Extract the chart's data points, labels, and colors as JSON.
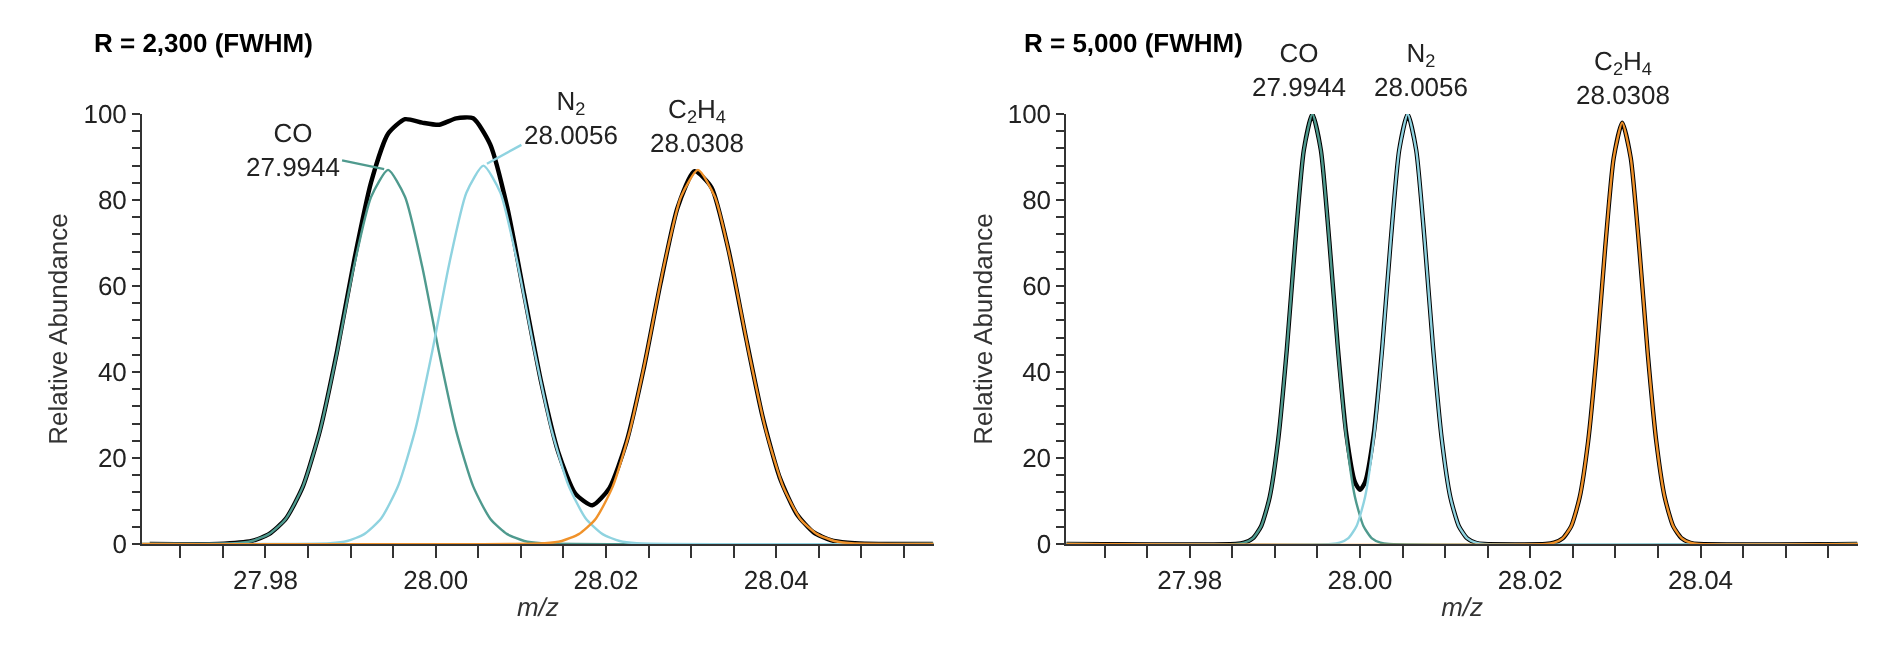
{
  "chart_data": [
    {
      "type": "line",
      "title": "R = 2,300 (FWHM)",
      "xlabel": "m/z",
      "ylabel": "Relative Abundance",
      "xlim": [
        27.9655,
        28.0585
      ],
      "ylim": [
        0,
        100
      ],
      "xticks": [
        {
          "value": 27.97,
          "label": null
        },
        {
          "value": 27.975,
          "label": null
        },
        {
          "value": 27.98,
          "label": "27.98"
        },
        {
          "value": 27.985,
          "label": null
        },
        {
          "value": 27.99,
          "label": null
        },
        {
          "value": 27.995,
          "label": null
        },
        {
          "value": 28.0,
          "label": "28.00"
        },
        {
          "value": 28.005,
          "label": null
        },
        {
          "value": 28.01,
          "label": null
        },
        {
          "value": 28.015,
          "label": null
        },
        {
          "value": 28.02,
          "label": "28.02"
        },
        {
          "value": 28.025,
          "label": null
        },
        {
          "value": 28.03,
          "label": null
        },
        {
          "value": 28.035,
          "label": null
        },
        {
          "value": 28.04,
          "label": "28.04"
        },
        {
          "value": 28.045,
          "label": null
        },
        {
          "value": 28.05,
          "label": null
        },
        {
          "value": 28.055,
          "label": null
        }
      ],
      "yticks": [
        0,
        {
          "value": 4,
          "label": null
        },
        {
          "value": 8,
          "label": null
        },
        {
          "value": 12,
          "label": null
        },
        {
          "value": 16,
          "label": null
        },
        20,
        {
          "value": 24,
          "label": null
        },
        {
          "value": 28,
          "label": null
        },
        {
          "value": 32,
          "label": null
        },
        {
          "value": 36,
          "label": null
        },
        40,
        {
          "value": 44,
          "label": null
        },
        {
          "value": 48,
          "label": null
        },
        {
          "value": 52,
          "label": null
        },
        {
          "value": 56,
          "label": null
        },
        60,
        {
          "value": 64,
          "label": null
        },
        {
          "value": 68,
          "label": null
        },
        {
          "value": 72,
          "label": null
        },
        {
          "value": 76,
          "label": null
        },
        80,
        {
          "value": 84,
          "label": null
        },
        {
          "value": 88,
          "label": null
        },
        {
          "value": 92,
          "label": null
        },
        {
          "value": 96,
          "label": null
        },
        100
      ],
      "series": [
        {
          "color": "#000000",
          "x": [
            27.9664,
            27.9744,
            27.9784,
            27.9804,
            27.9824,
            27.9844,
            27.9864,
            27.9884,
            27.9904,
            27.9924,
            27.9944,
            27.9964,
            27.9984,
            28.0004,
            28.0024,
            28.0044,
            28.0064,
            28.0084,
            28.0104,
            28.0124,
            28.0144,
            28.0164,
            28.0184,
            28.0204,
            28.0224,
            28.0244,
            28.0264,
            28.0284,
            28.0304,
            28.0324,
            28.0344,
            28.0364,
            28.0384,
            28.0404,
            28.0424,
            28.0444,
            28.0464,
            28.0484,
            28.0504,
            28.0584
          ],
          "values": [
            0,
            0,
            0.7,
            2.3,
            5.9,
            13.4,
            26.4,
            44.7,
            65.8,
            84.1,
            95.4,
            98.8,
            98.0,
            97.5,
            99.0,
            99.0,
            92.9,
            78.3,
            57.9,
            37.5,
            21.3,
            11.7,
            9.0,
            13.0,
            23.7,
            40.5,
            60.6,
            78.2,
            86.7,
            82.9,
            68.3,
            48.4,
            29.6,
            15.5,
            7.0,
            2.7,
            0.9,
            0.3,
            0.1,
            0
          ]
        },
        {
          "color": "#4f9a8e",
          "x": [
            27.9655,
            27.9764,
            27.9784,
            27.9804,
            27.9824,
            27.9844,
            27.9864,
            27.9884,
            27.9904,
            27.9924,
            27.9944,
            27.9964,
            27.9984,
            28.0004,
            28.0024,
            28.0044,
            28.0064,
            28.0084,
            28.0104,
            28.0124,
            28.0585
          ],
          "values": [
            0,
            0.2,
            0.7,
            2.3,
            5.9,
            13.4,
            26.3,
            44.4,
            64.6,
            80.7,
            87,
            80.7,
            64.6,
            44.4,
            26.3,
            13.4,
            5.9,
            2.3,
            0.7,
            0.2,
            0
          ]
        },
        {
          "color": "#8fd3e0",
          "x": [
            27.9655,
            27.9876,
            27.9896,
            27.9916,
            27.9936,
            27.9956,
            27.9976,
            27.9996,
            28.0016,
            28.0036,
            28.0056,
            28.0076,
            28.0096,
            28.0116,
            28.0136,
            28.0156,
            28.0176,
            28.0196,
            28.0216,
            28.0236,
            28.0585
          ],
          "values": [
            0,
            0.2,
            0.7,
            2.3,
            6.0,
            13.6,
            26.6,
            44.9,
            65.3,
            81.7,
            88,
            81.7,
            65.3,
            44.9,
            26.6,
            13.6,
            6.0,
            2.3,
            0.7,
            0.2,
            0
          ]
        },
        {
          "color": "#f0922a",
          "x": [
            27.9655,
            28.0128,
            28.0148,
            28.0168,
            28.0188,
            28.0208,
            28.0228,
            28.0248,
            28.0268,
            28.0288,
            28.0308,
            28.0328,
            28.0348,
            28.0368,
            28.0388,
            28.0408,
            28.0428,
            28.0448,
            28.0468,
            28.0488,
            28.0585
          ],
          "values": [
            0,
            0.2,
            0.7,
            2.3,
            5.9,
            13.4,
            26.3,
            44.4,
            64.6,
            80.7,
            87,
            80.7,
            64.6,
            44.4,
            26.3,
            13.4,
            5.9,
            2.3,
            0.7,
            0.2,
            0
          ]
        }
      ],
      "annotations": [
        {
          "text": "CO\n27.9944",
          "x": 27.9944,
          "y": 87
        },
        {
          "text": "N$_{2}$\n28.0056",
          "x": 28.0056,
          "y": 88
        },
        {
          "text": "C$_{2}$H$_{4}$\n28.0308",
          "x": 28.0308,
          "y": 87
        }
      ]
    },
    {
      "type": "line",
      "title": "R = 5,000 (FWHM)",
      "xlabel": "m/z",
      "ylabel": "Relative Abundance",
      "xlim": [
        27.9655,
        28.0585
      ],
      "ylim": [
        0,
        100
      ],
      "xticks": [
        {
          "value": 27.97,
          "label": null
        },
        {
          "value": 27.975,
          "label": null
        },
        {
          "value": 27.98,
          "label": "27.98"
        },
        {
          "value": 27.985,
          "label": null
        },
        {
          "value": 27.99,
          "label": null
        },
        {
          "value": 27.995,
          "label": null
        },
        {
          "value": 28.0,
          "label": "28.00"
        },
        {
          "value": 28.005,
          "label": null
        },
        {
          "value": 28.01,
          "label": null
        },
        {
          "value": 28.015,
          "label": null
        },
        {
          "value": 28.02,
          "label": "28.02"
        },
        {
          "value": 28.025,
          "label": null
        },
        {
          "value": 28.03,
          "label": null
        },
        {
          "value": 28.035,
          "label": null
        },
        {
          "value": 28.04,
          "label": "28.04"
        },
        {
          "value": 28.045,
          "label": null
        },
        {
          "value": 28.05,
          "label": null
        },
        {
          "value": 28.055,
          "label": null
        }
      ],
      "yticks": [
        0,
        {
          "value": 4,
          "label": null
        },
        {
          "value": 8,
          "label": null
        },
        {
          "value": 12,
          "label": null
        },
        {
          "value": 16,
          "label": null
        },
        20,
        {
          "value": 24,
          "label": null
        },
        {
          "value": 28,
          "label": null
        },
        {
          "value": 32,
          "label": null
        },
        {
          "value": 36,
          "label": null
        },
        40,
        {
          "value": 44,
          "label": null
        },
        {
          "value": 48,
          "label": null
        },
        {
          "value": 52,
          "label": null
        },
        {
          "value": 56,
          "label": null
        },
        60,
        {
          "value": 64,
          "label": null
        },
        {
          "value": 68,
          "label": null
        },
        {
          "value": 72,
          "label": null
        },
        {
          "value": 76,
          "label": null
        },
        80,
        {
          "value": 84,
          "label": null
        },
        {
          "value": 88,
          "label": null
        },
        {
          "value": 92,
          "label": null
        },
        {
          "value": 96,
          "label": null
        },
        100
      ],
      "series": [
        {
          "color": "#000000",
          "x": [
            27.9655,
            27.9854,
            27.9864,
            27.9874,
            27.9884,
            27.9894,
            27.9904,
            27.9914,
            27.9924,
            27.9934,
            27.9944,
            27.9954,
            27.9964,
            27.9974,
            27.9984,
            27.9994,
            28.0,
            28.0006,
            28.0016,
            28.0026,
            28.0036,
            28.0046,
            28.0056,
            28.0066,
            28.0076,
            28.0086,
            28.0096,
            28.0106,
            28.0116,
            28.0126,
            28.0136,
            28.0146,
            28.0218,
            28.0228,
            28.0238,
            28.0248,
            28.0258,
            28.0268,
            28.0278,
            28.0288,
            28.0298,
            28.0308,
            28.0318,
            28.0328,
            28.0338,
            28.0348,
            28.0358,
            28.0368,
            28.0378,
            28.0388,
            28.0398,
            28.0584
          ],
          "values": [
            0,
            0,
            0.3,
            1.3,
            4.2,
            11.0,
            24.4,
            45.2,
            70.3,
            91.6,
            100,
            91.6,
            70.3,
            45.5,
            25.4,
            14.4,
            12.6,
            14.4,
            25.4,
            45.5,
            70.3,
            91.6,
            100,
            91.6,
            70.3,
            45.2,
            24.4,
            11.0,
            4.2,
            1.3,
            0.3,
            0,
            0,
            0.3,
            1.3,
            4.1,
            10.8,
            23.9,
            44.3,
            68.9,
            89.8,
            98,
            89.8,
            68.9,
            44.3,
            23.9,
            10.8,
            4.1,
            1.3,
            0.3,
            0,
            0
          ]
        },
        {
          "color": "#4f9a8e",
          "x": [
            27.9655,
            27.9854,
            27.9864,
            27.9874,
            27.9884,
            27.9894,
            27.9904,
            27.9914,
            27.9924,
            27.9934,
            27.9944,
            27.9954,
            27.9964,
            27.9974,
            27.9984,
            27.9994,
            28.0004,
            28.0014,
            28.0024,
            28.0034,
            28.0585
          ],
          "values": [
            0,
            0,
            0.3,
            1.3,
            4.2,
            11.0,
            24.4,
            45.2,
            70.3,
            91.6,
            100,
            91.6,
            70.3,
            45.2,
            24.4,
            11.0,
            4.2,
            1.3,
            0.3,
            0,
            0
          ]
        },
        {
          "color": "#8fd3e0",
          "x": [
            27.9655,
            27.9966,
            27.9976,
            27.9986,
            27.9996,
            28.0006,
            28.0016,
            28.0026,
            28.0036,
            28.0046,
            28.0056,
            28.0066,
            28.0076,
            28.0086,
            28.0096,
            28.0106,
            28.0116,
            28.0126,
            28.0136,
            28.0146,
            28.0585
          ],
          "values": [
            0,
            0,
            0.3,
            1.3,
            4.2,
            11.0,
            24.4,
            45.2,
            70.3,
            91.6,
            100,
            91.6,
            70.3,
            45.2,
            24.4,
            11.0,
            4.2,
            1.3,
            0.3,
            0,
            0
          ]
        },
        {
          "color": "#f0922a",
          "x": [
            27.9655,
            28.0218,
            28.0228,
            28.0238,
            28.0248,
            28.0258,
            28.0268,
            28.0278,
            28.0288,
            28.0298,
            28.0308,
            28.0318,
            28.0328,
            28.0338,
            28.0348,
            28.0358,
            28.0368,
            28.0378,
            28.0388,
            28.0398,
            28.0585
          ],
          "values": [
            0,
            0,
            0.3,
            1.3,
            4.1,
            10.8,
            23.9,
            44.3,
            68.9,
            89.8,
            98,
            89.8,
            68.9,
            44.3,
            23.9,
            10.8,
            4.1,
            1.3,
            0.3,
            0,
            0
          ]
        }
      ],
      "annotations": [
        {
          "text": "CO\n27.9944",
          "x": 27.9944,
          "y": 100
        },
        {
          "text": "N$_{2}$\n28.0056",
          "x": 28.0056,
          "y": 100
        },
        {
          "text": "C$_{2}$H$_{4}$\n28.0308",
          "x": 28.0308,
          "y": 98
        }
      ]
    }
  ]
}
